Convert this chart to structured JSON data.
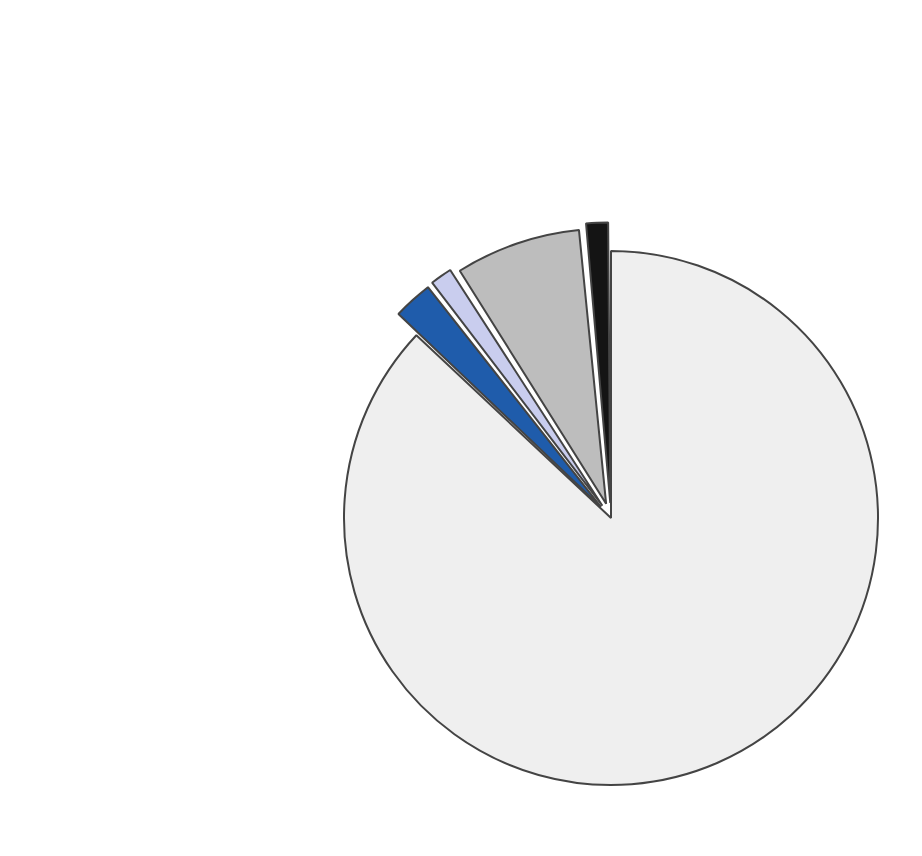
{
  "chart_data": {
    "type": "pie",
    "categories": [
      null,
      null,
      null,
      null,
      null
    ],
    "values": [
      87,
      2.5,
      1.5,
      7.5,
      1.5
    ],
    "colors": [
      "#efefef",
      "#1f5cab",
      "#c9cdee",
      "#bdbdbd",
      "#141414"
    ]
  }
}
